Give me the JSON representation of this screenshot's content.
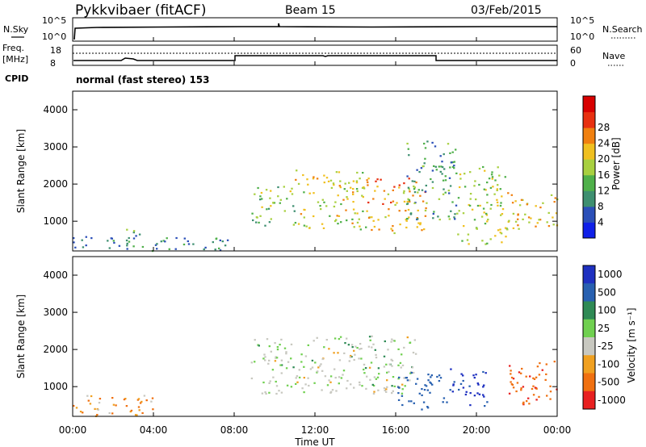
{
  "header": {
    "station": "Pykkvibaer (fitACF)",
    "beam": "Beam 15",
    "date": "03/Feb/2015"
  },
  "status_panels": {
    "nsky_label": "N.Sky",
    "nsky_ticks": [
      "10^5",
      "10^0"
    ],
    "nsearch_label": "N.Search",
    "nsearch_ticks": [
      "10^5",
      "10^0"
    ],
    "freq_label": "Freq.",
    "freq_unit": "[MHz]",
    "freq_ticks": [
      "18",
      "8"
    ],
    "nave_label": "Nave",
    "nave_ticks": [
      "60",
      "0"
    ],
    "cpid_label": "CPID",
    "cpid_value": "normal (fast stereo) 153"
  },
  "chart_data": [
    {
      "type": "heatmap",
      "name": "power",
      "xlabel": "",
      "ylabel": "Slant Range [km]",
      "xlim_hours": [
        0,
        24
      ],
      "ylim": [
        200,
        4500
      ],
      "yticks": [
        "1000",
        "2000",
        "3000",
        "4000"
      ],
      "colorbar_label": "Power [dB]",
      "colorbar_ticks": [
        "4",
        "8",
        "12",
        "16",
        "20",
        "24",
        "28"
      ],
      "colorbar_colors": [
        "#1020e8",
        "#2b4fb8",
        "#3e8f70",
        "#4fb04a",
        "#a8d040",
        "#f0c020",
        "#f08010",
        "#e83010",
        "#d80000"
      ],
      "echo_regions": [
        {
          "t0": 0.0,
          "t1": 8.0,
          "r0": 220,
          "r1": 600,
          "level": 6
        },
        {
          "t0": 2.3,
          "t1": 3.4,
          "r0": 500,
          "r1": 800,
          "level": 9
        },
        {
          "t0": 8.8,
          "t1": 11.0,
          "r0": 900,
          "r1": 2000,
          "level": 13
        },
        {
          "t0": 11.0,
          "t1": 14.5,
          "r0": 800,
          "r1": 2400,
          "level": 18
        },
        {
          "t0": 14.5,
          "t1": 17.5,
          "r0": 700,
          "r1": 2200,
          "level": 22
        },
        {
          "t0": 16.5,
          "t1": 19.0,
          "r0": 1000,
          "r1": 3200,
          "level": 10
        },
        {
          "t0": 19.0,
          "t1": 21.5,
          "r0": 400,
          "r1": 2500,
          "level": 16
        },
        {
          "t0": 21.5,
          "t1": 24.0,
          "r0": 800,
          "r1": 1800,
          "level": 20
        }
      ]
    },
    {
      "type": "heatmap",
      "name": "velocity",
      "xlabel": "Time UT",
      "ylabel": "Slant Range [km]",
      "xlim_hours": [
        0,
        24
      ],
      "ylim": [
        200,
        4500
      ],
      "xticks": [
        "00:00",
        "04:00",
        "08:00",
        "12:00",
        "16:00",
        "20:00",
        "00:00"
      ],
      "yticks": [
        "1000",
        "2000",
        "3000",
        "4000"
      ],
      "colorbar_label": "Velocity [m s⁻¹]",
      "colorbar_ticks": [
        "1000",
        "500",
        "100",
        "25",
        "-25",
        "-100",
        "-500",
        "-1000"
      ],
      "colorbar_colors": [
        "#1e30c0",
        "#2860b0",
        "#2f8a55",
        "#70d050",
        "#c8c8c0",
        "#f0a020",
        "#f07010",
        "#e82020"
      ],
      "echo_regions": [
        {
          "t0": 0.0,
          "t1": 4.0,
          "r0": 220,
          "r1": 800,
          "vel": -80
        },
        {
          "t0": 8.8,
          "t1": 17.0,
          "r0": 800,
          "r1": 2400,
          "vel": 0
        },
        {
          "t0": 16.0,
          "t1": 18.5,
          "r0": 400,
          "r1": 1400,
          "vel": 300
        },
        {
          "t0": 18.5,
          "t1": 20.5,
          "r0": 500,
          "r1": 1500,
          "vel": 700
        },
        {
          "t0": 21.5,
          "t1": 24.0,
          "r0": 500,
          "r1": 1700,
          "vel": -400
        }
      ]
    }
  ]
}
